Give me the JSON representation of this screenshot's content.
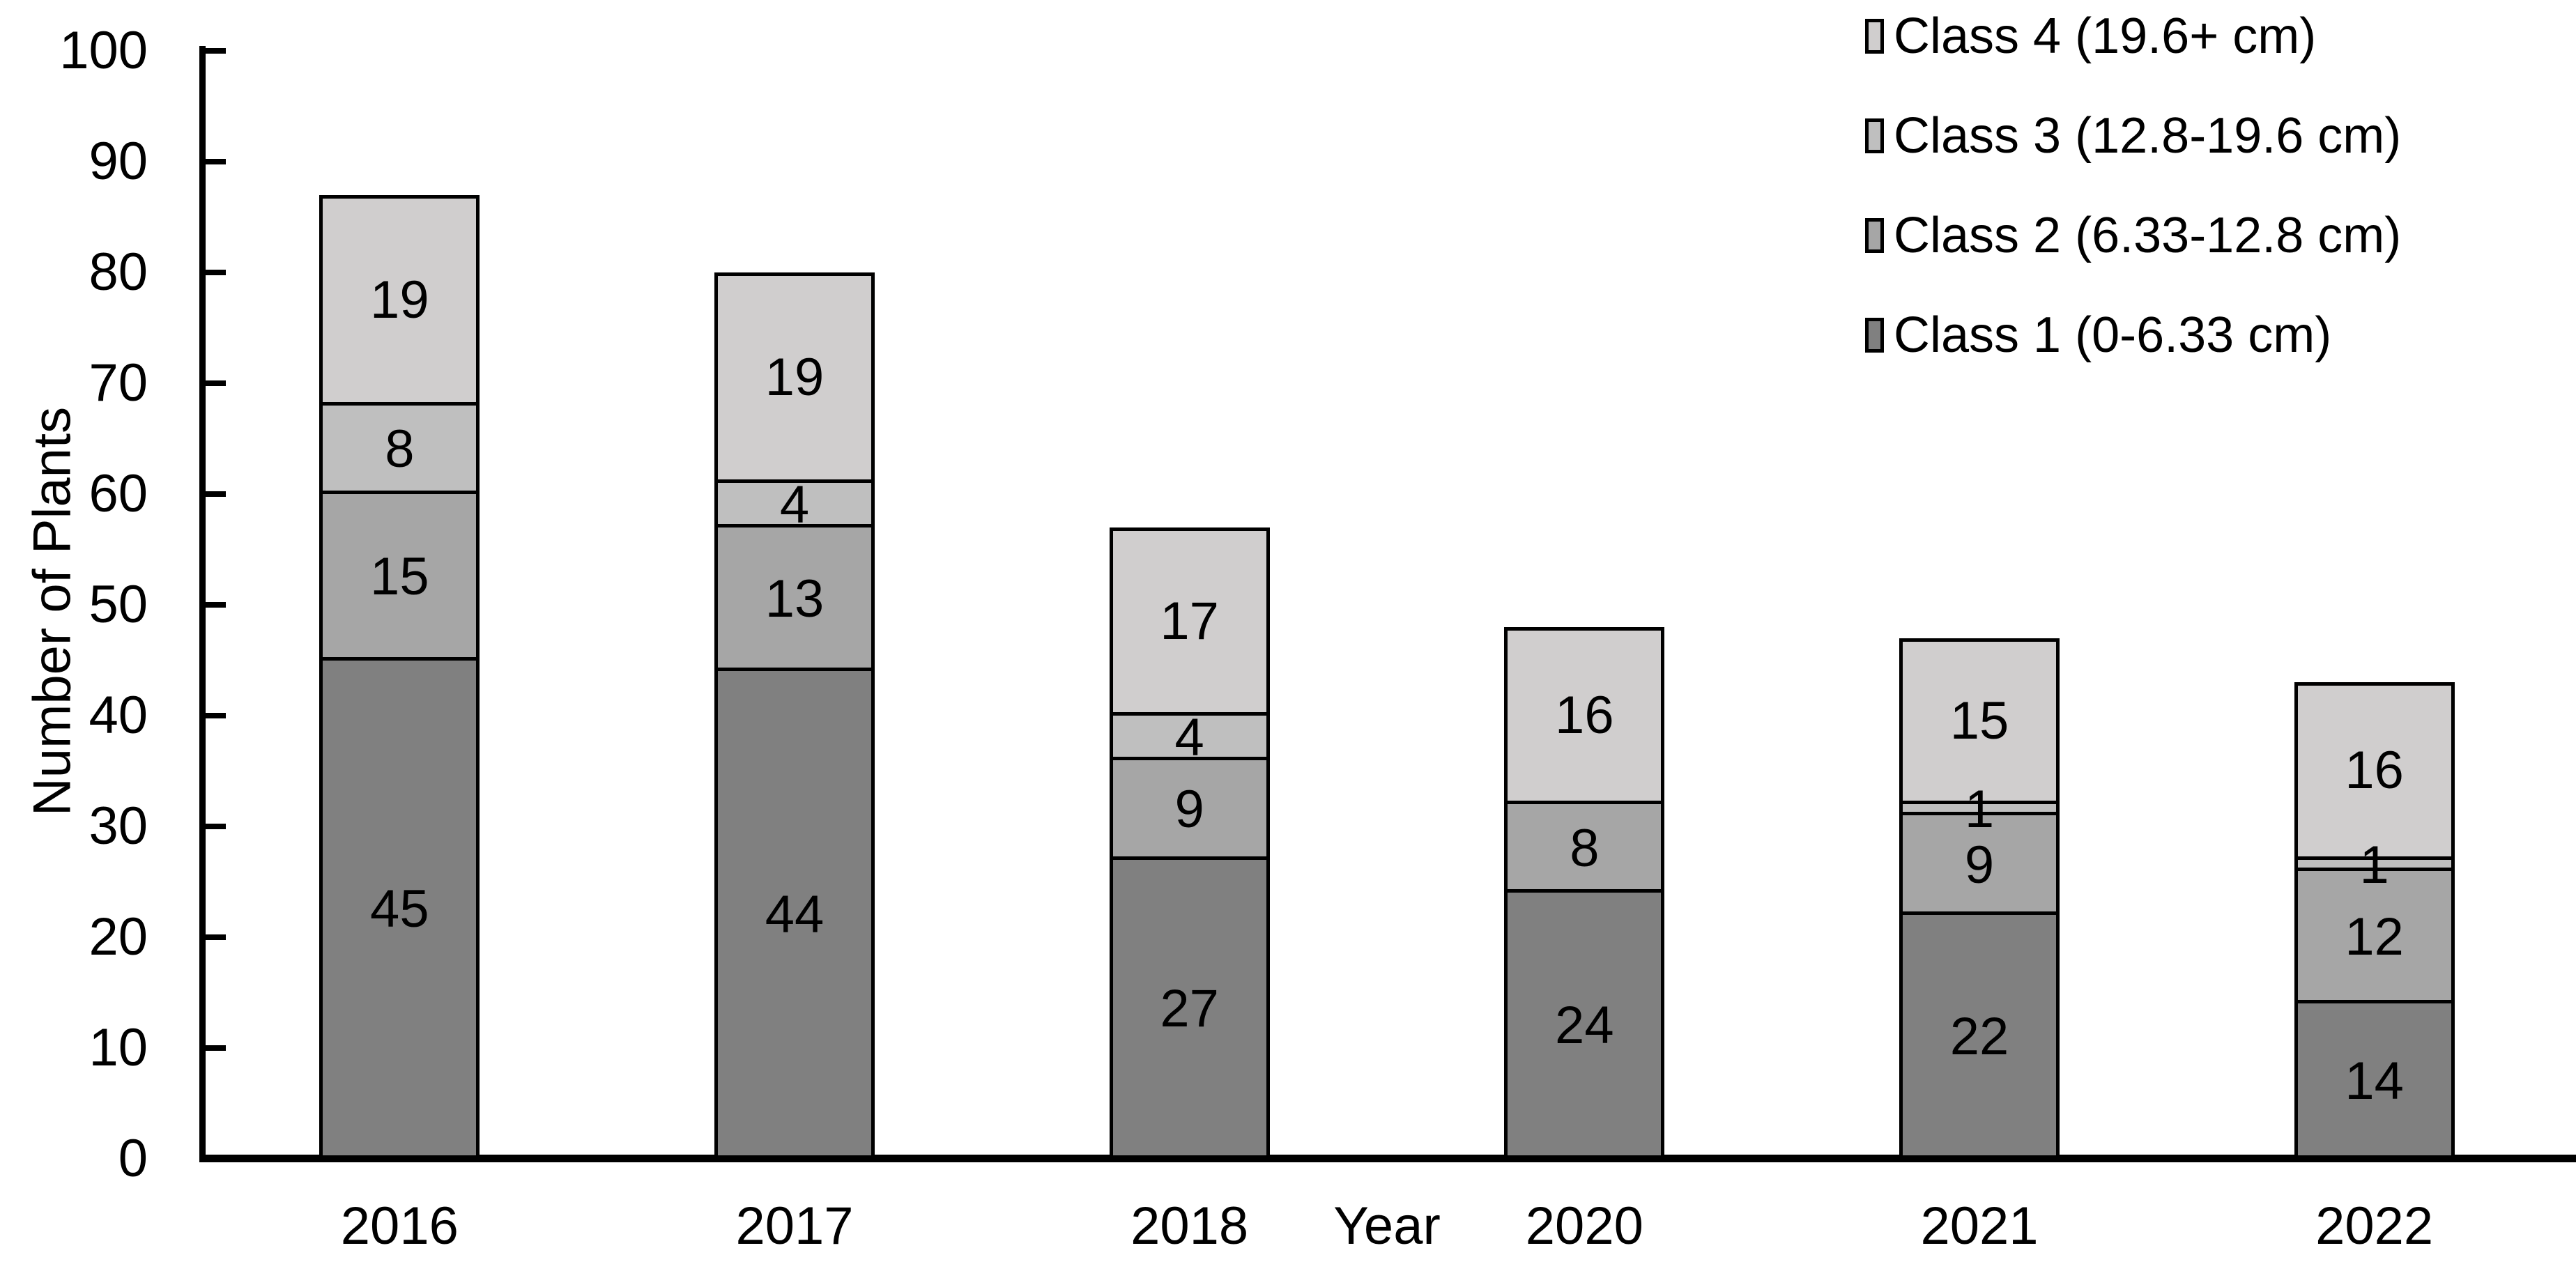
{
  "chart_data": {
    "type": "bar",
    "stacked": true,
    "title": "",
    "xlabel": "Year",
    "ylabel": "Number of Plants",
    "ylim": [
      0,
      100
    ],
    "yticks": [
      0,
      10,
      20,
      30,
      40,
      50,
      60,
      70,
      80,
      90,
      100
    ],
    "categories": [
      "2016",
      "2017",
      "2018",
      "2020",
      "2021",
      "2022"
    ],
    "series": [
      {
        "name": "Class 1 (0-6.33 cm)",
        "color": "#808080",
        "values": [
          45,
          44,
          27,
          24,
          22,
          14
        ]
      },
      {
        "name": "Class 2 (6.33-12.8 cm)",
        "color": "#A6A6A6",
        "values": [
          15,
          13,
          9,
          8,
          9,
          12
        ]
      },
      {
        "name": "Class 3 (12.8-19.6 cm)",
        "color": "#BFBFBF",
        "values": [
          8,
          4,
          4,
          0,
          1,
          1
        ]
      },
      {
        "name": "Class 4 (19.6+ cm)",
        "color": "#D0CECE",
        "values": [
          19,
          19,
          17,
          16,
          15,
          16
        ]
      }
    ],
    "legend_position": "top-right",
    "legend_order_top_to_bottom": [
      "Class 4 (19.6+ cm)",
      "Class 3 (12.8-19.6 cm)",
      "Class 2 (6.33-12.8 cm)",
      "Class 1 (0-6.33 cm)"
    ],
    "grid": false,
    "bar_labels": "segment values shown inside segments; zero-value segments have no segment and no label"
  },
  "colors": {
    "axis": "#000000",
    "text": "#000000",
    "background": "#FFFFFF"
  }
}
